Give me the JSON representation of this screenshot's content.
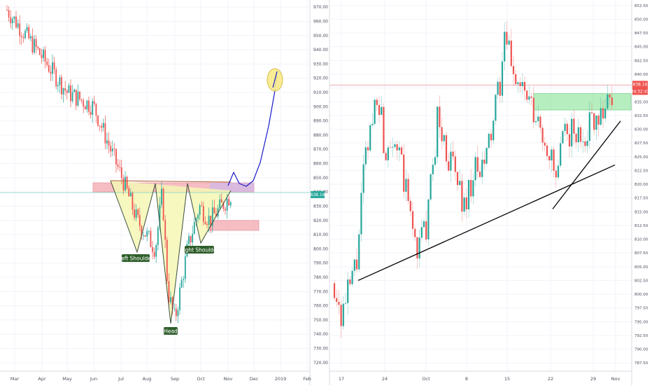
{
  "chart_data": [
    {
      "type": "candlestick",
      "panel": "left",
      "xlabels": [
        "Mar",
        "Apr",
        "May",
        "Jun",
        "Jul",
        "Aug",
        "Sep",
        "Oct",
        "Nov",
        "Dec",
        "2019",
        "Feb"
      ],
      "y_ticks": [
        720,
        730,
        740,
        750,
        760,
        770,
        780,
        790,
        800,
        810,
        820,
        830,
        840,
        850,
        860,
        870,
        880,
        890,
        900,
        910,
        920,
        930,
        940,
        950,
        960,
        970
      ],
      "ylim": [
        714,
        975
      ],
      "price_label": "838.16",
      "pattern_labels": {
        "left_shoulder": "Left Shoulder",
        "head": "Head",
        "right_shoulder": "Right Shoulder"
      },
      "neckline_level": 844,
      "support_zone": [
        813,
        820
      ],
      "target_level": 920,
      "trend_path": [
        {
          "month": "Jul",
          "value": 822
        },
        {
          "month": "Aug",
          "value": 802
        },
        {
          "month": "Sep",
          "value": 785
        },
        {
          "month": "Oct",
          "value": 825
        },
        {
          "month": "Nov",
          "value": 845
        },
        {
          "month": "Dec",
          "value": 870
        },
        {
          "month": "2019",
          "value": 920
        }
      ],
      "ohlc_path": [
        {
          "month": "Mar",
          "value": 968
        },
        {
          "month": "Apr",
          "value": 935
        },
        {
          "month": "May",
          "value": 910
        },
        {
          "month": "Jun",
          "value": 900
        },
        {
          "month": "Jun",
          "value": 870
        },
        {
          "month": "Jul",
          "value": 848
        },
        {
          "month": "Jul",
          "value": 820
        },
        {
          "month": "Aug",
          "value": 800
        },
        {
          "month": "Aug",
          "value": 840
        },
        {
          "month": "Sep",
          "value": 770
        },
        {
          "month": "Sep",
          "value": 750
        },
        {
          "month": "Sep",
          "value": 800
        },
        {
          "month": "Oct",
          "value": 830
        },
        {
          "month": "Oct",
          "value": 820
        },
        {
          "month": "Nov",
          "value": 838
        }
      ]
    },
    {
      "type": "candlestick",
      "panel": "right",
      "xlabels": [
        "17",
        "24",
        "Oct",
        "8",
        "15",
        "22",
        "29",
        "Nov"
      ],
      "y_ticks": [
        787.5,
        790,
        792.5,
        795,
        797.5,
        800,
        802.5,
        805,
        807.5,
        810,
        812.5,
        815,
        817.5,
        820,
        822.5,
        825,
        827.5,
        830,
        832.5,
        835,
        837.5,
        840,
        842.5,
        845,
        847.5,
        850,
        852.5
      ],
      "ylim": [
        786,
        853.5
      ],
      "price_label": "838.16",
      "countdown_label": "04:32:43",
      "resistance_level": 838,
      "resistance_zone": [
        833.5,
        836.5
      ],
      "uptrend_line_a": [
        {
          "x": "17",
          "value": 802.5
        },
        {
          "x": "Nov",
          "value": 823.5
        }
      ],
      "uptrend_line_b": [
        {
          "x": "22",
          "value": 815.5
        },
        {
          "x": "Nov",
          "value": 831.5
        }
      ]
    }
  ],
  "colors": {
    "up": "#26a69a",
    "down": "#ef5350",
    "pattern_fill": "#f5f7b5",
    "zone_red": "#f4a7b0",
    "zone_green": "#9ae8a4",
    "line_blue": "#1a1ac8",
    "price_tag": "#26a69a",
    "resistance_tag": "#ef5350",
    "label_bg": "#2e5e2a"
  }
}
